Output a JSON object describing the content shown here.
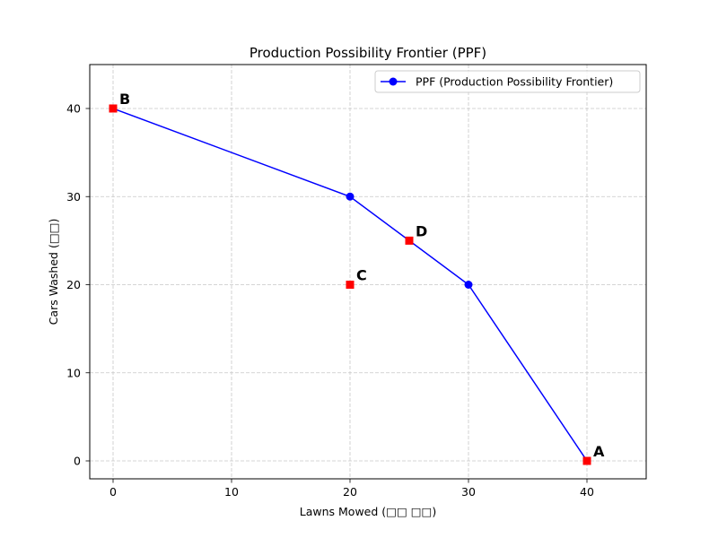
{
  "figure": {
    "title": "Production Possibility Frontier (PPF)",
    "xlabel": "Lawns Mowed (□□ □□)",
    "ylabel": "Cars Washed (□□)",
    "legend_label": "PPF (Production Possibility Frontier)"
  },
  "colors": {
    "line": "#0000ff",
    "highlight": "#ff0000",
    "grid": "#c8c8c8",
    "text": "#000000"
  },
  "chart_data": {
    "type": "line",
    "title": "Production Possibility Frontier (PPF)",
    "xlabel": "Lawns Mowed (□□ □□)",
    "ylabel": "Cars Washed (□□)",
    "xlim": [
      -2,
      45
    ],
    "ylim": [
      -2,
      45
    ],
    "xticks": [
      0,
      10,
      20,
      30,
      40
    ],
    "yticks": [
      0,
      10,
      20,
      30,
      40
    ],
    "grid": true,
    "legend_position": "upper right",
    "series": [
      {
        "name": "PPF (Production Possibility Frontier)",
        "type": "line",
        "marker": "circle",
        "color": "#0000ff",
        "x": [
          0,
          20,
          30,
          40
        ],
        "y": [
          40,
          30,
          20,
          0
        ]
      }
    ],
    "points": [
      {
        "label": "A",
        "x": 40,
        "y": 0,
        "marker": "square",
        "color": "#ff0000"
      },
      {
        "label": "B",
        "x": 0,
        "y": 40,
        "marker": "square",
        "color": "#ff0000"
      },
      {
        "label": "C",
        "x": 20,
        "y": 20,
        "marker": "square",
        "color": "#ff0000"
      },
      {
        "label": "D",
        "x": 25,
        "y": 25,
        "marker": "square",
        "color": "#ff0000"
      }
    ]
  }
}
